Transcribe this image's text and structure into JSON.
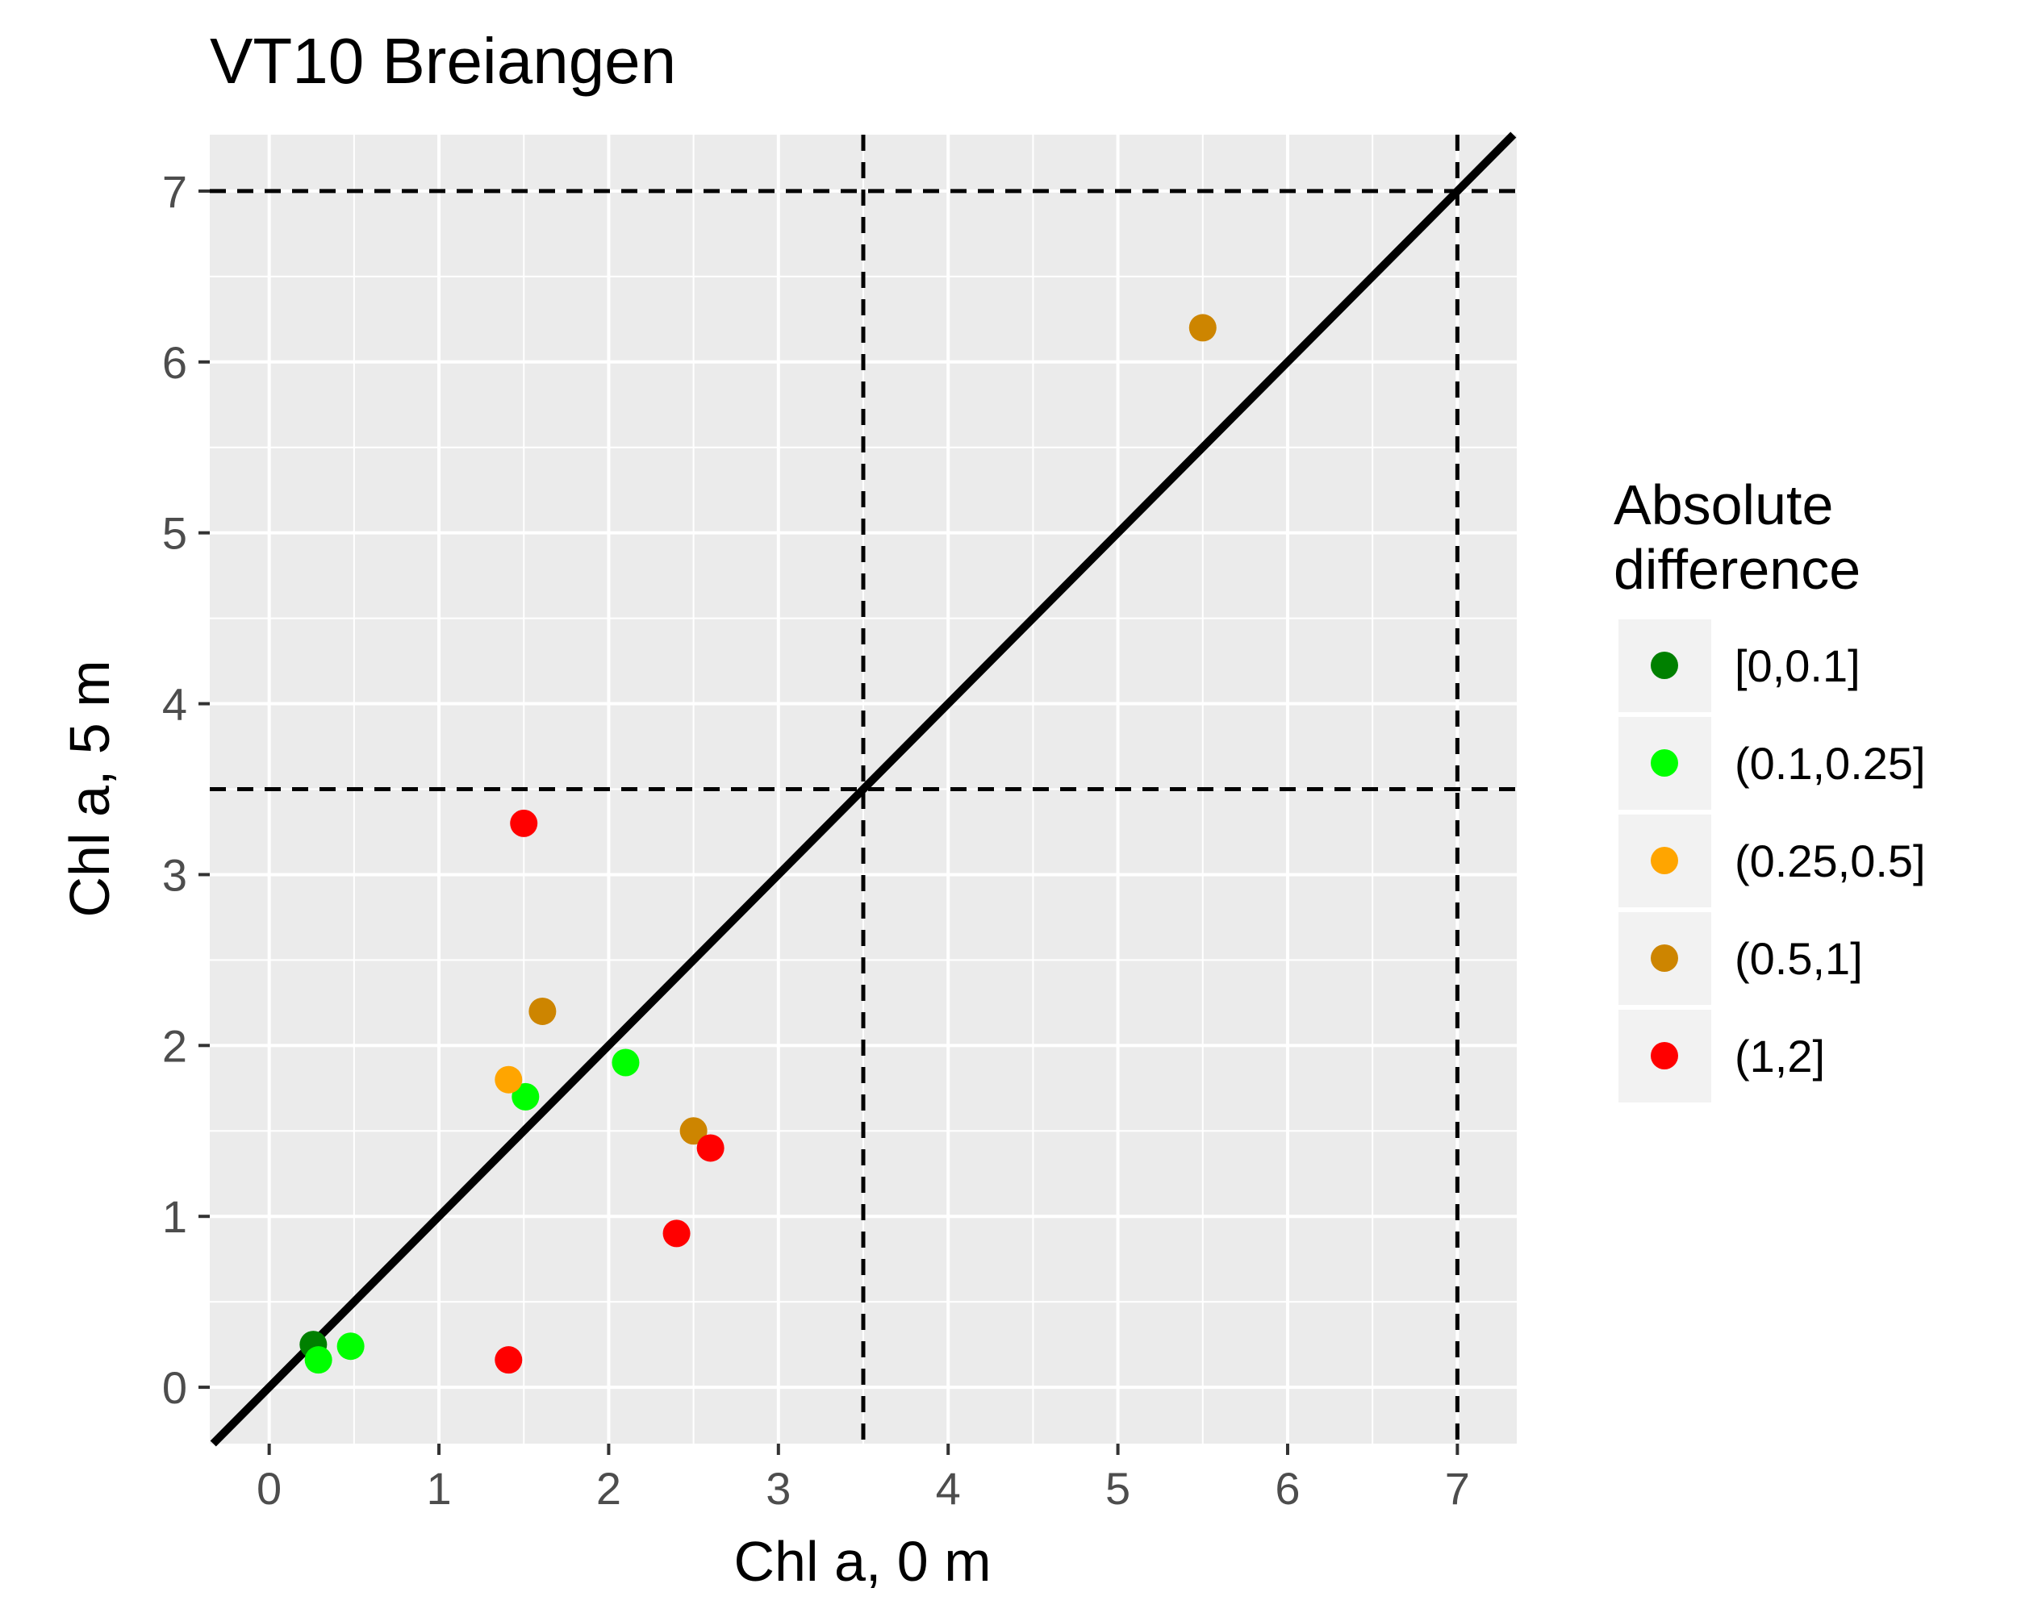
{
  "chart_data": {
    "type": "scatter",
    "title": "VT10 Breiangen",
    "xlabel": "Chl a, 0 m",
    "ylabel": "Chl a, 5 m",
    "xlim": [
      -0.35,
      7.35
    ],
    "ylim": [
      -0.33,
      7.33
    ],
    "x_ticks": [
      0,
      1,
      2,
      3,
      4,
      5,
      6,
      7
    ],
    "y_ticks": [
      0,
      1,
      2,
      3,
      4,
      5,
      6,
      7
    ],
    "grid": true,
    "panel_background": "#ebebeb",
    "identity_line": {
      "slope": 1,
      "intercept": 0,
      "color": "#000000"
    },
    "reference_lines": {
      "vertical": [
        3.5,
        7
      ],
      "horizontal": [
        3.5,
        7
      ],
      "style": "dashed",
      "color": "#000000"
    },
    "legend": {
      "title": "Absolute difference",
      "placement": "right",
      "entries": [
        {
          "label": "[0,0.1]",
          "color": "#008000"
        },
        {
          "label": "(0.1,0.25]",
          "color": "#00ff00"
        },
        {
          "label": "(0.25,0.5]",
          "color": "#ffa500"
        },
        {
          "label": "(0.5,1]",
          "color": "#cd8500"
        },
        {
          "label": "(1,2]",
          "color": "#ff0000"
        }
      ]
    },
    "series": [
      {
        "name": "[0,0.1]",
        "color": "#008000",
        "points": [
          [
            0.26,
            0.25
          ]
        ]
      },
      {
        "name": "(0.1,0.25]",
        "color": "#00ff00",
        "points": [
          [
            0.29,
            0.16
          ],
          [
            0.48,
            0.24
          ],
          [
            1.51,
            1.7
          ],
          [
            2.1,
            1.9
          ]
        ]
      },
      {
        "name": "(0.25,0.5]",
        "color": "#ffa500",
        "points": [
          [
            1.41,
            1.8
          ]
        ]
      },
      {
        "name": "(0.5,1]",
        "color": "#cd8500",
        "points": [
          [
            1.61,
            2.2
          ],
          [
            2.5,
            1.5
          ],
          [
            5.5,
            6.2
          ]
        ]
      },
      {
        "name": "(1,2]",
        "color": "#ff0000",
        "points": [
          [
            1.5,
            3.3
          ],
          [
            1.41,
            0.16
          ],
          [
            2.4,
            0.9
          ],
          [
            2.6,
            1.4
          ]
        ]
      }
    ]
  }
}
